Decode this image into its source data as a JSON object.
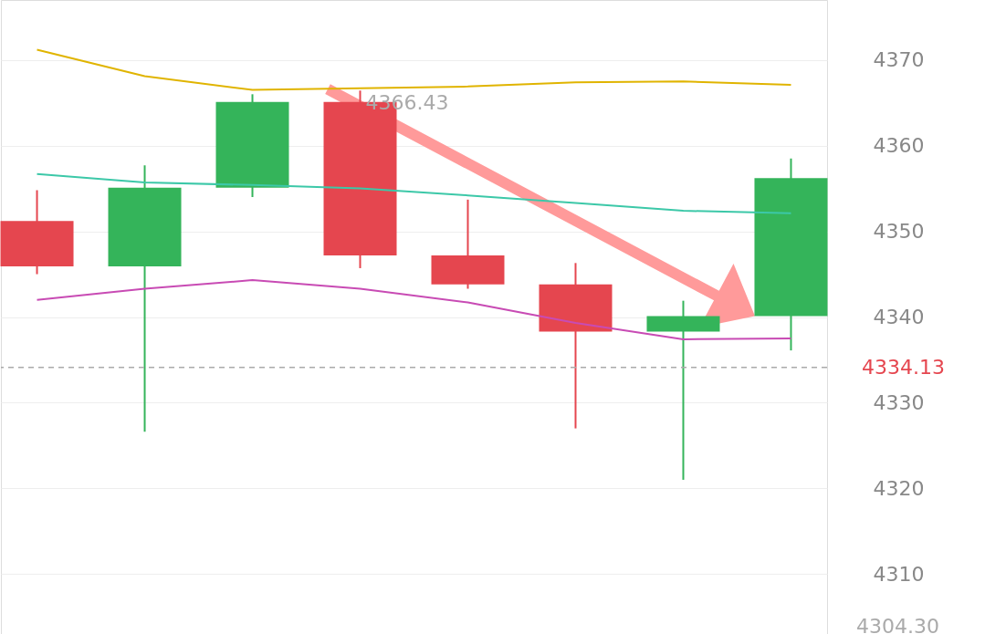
{
  "chart_data": {
    "type": "candlestick",
    "categories": [
      null,
      null,
      null,
      null,
      null,
      null,
      null,
      null
    ],
    "ohlc": [
      [
        4351.2,
        4354.8,
        4345.0,
        4345.9
      ],
      [
        4345.9,
        4357.7,
        4326.6,
        4355.1
      ],
      [
        4355.1,
        4366.0,
        4354.0,
        4365.1
      ],
      [
        4365.1,
        4366.43,
        4345.7,
        4347.2
      ],
      [
        4347.2,
        4353.7,
        4343.3,
        4343.8
      ],
      [
        4343.8,
        4346.3,
        4327.0,
        4338.3
      ],
      [
        4338.3,
        4341.9,
        4321.0,
        4340.1
      ],
      [
        4340.1,
        4358.5,
        4336.1,
        4356.2
      ]
    ],
    "colors": [
      "#e5464f",
      "#34b45a",
      "#34b45a",
      "#e5464f",
      "#e5464f",
      "#e5464f",
      "#34b45a",
      "#34b45a"
    ],
    "series": [
      {
        "type": "line",
        "color": "#e0b400",
        "values": [
          4371.2,
          4368.1,
          4366.5,
          4366.7,
          4366.9,
          4367.4,
          4367.5,
          4367.1
        ]
      },
      {
        "type": "line",
        "color": "#3cc8a8",
        "values": [
          4356.7,
          4355.7,
          4355.4,
          4355.0,
          4354.2,
          4353.3,
          4352.4,
          4352.1
        ]
      },
      {
        "type": "line",
        "color": "#c84bb4",
        "values": [
          4342.0,
          4343.3,
          4344.3,
          4343.3,
          4341.7,
          4339.3,
          4337.4,
          4337.5
        ]
      }
    ],
    "ylim": [
      4303,
      4377
    ],
    "yticks": [
      {
        "value": 4310,
        "label": "4310"
      },
      {
        "value": 4320,
        "label": "4320"
      },
      {
        "value": 4330,
        "label": "4330"
      },
      {
        "value": 4340,
        "label": "4340"
      },
      {
        "value": 4350,
        "label": "4350"
      },
      {
        "value": 4360,
        "label": "4360"
      },
      {
        "value": 4370,
        "label": "4370"
      }
    ],
    "grid": "y",
    "ref_lines": [
      {
        "axis": "y",
        "value": 4334.13,
        "label": "4334.13",
        "color": "#aaaaaa",
        "line_style": "dashed"
      }
    ],
    "annotations": [
      {
        "text": "4366.43",
        "y": 4366.43
      },
      "4304.30"
    ]
  }
}
